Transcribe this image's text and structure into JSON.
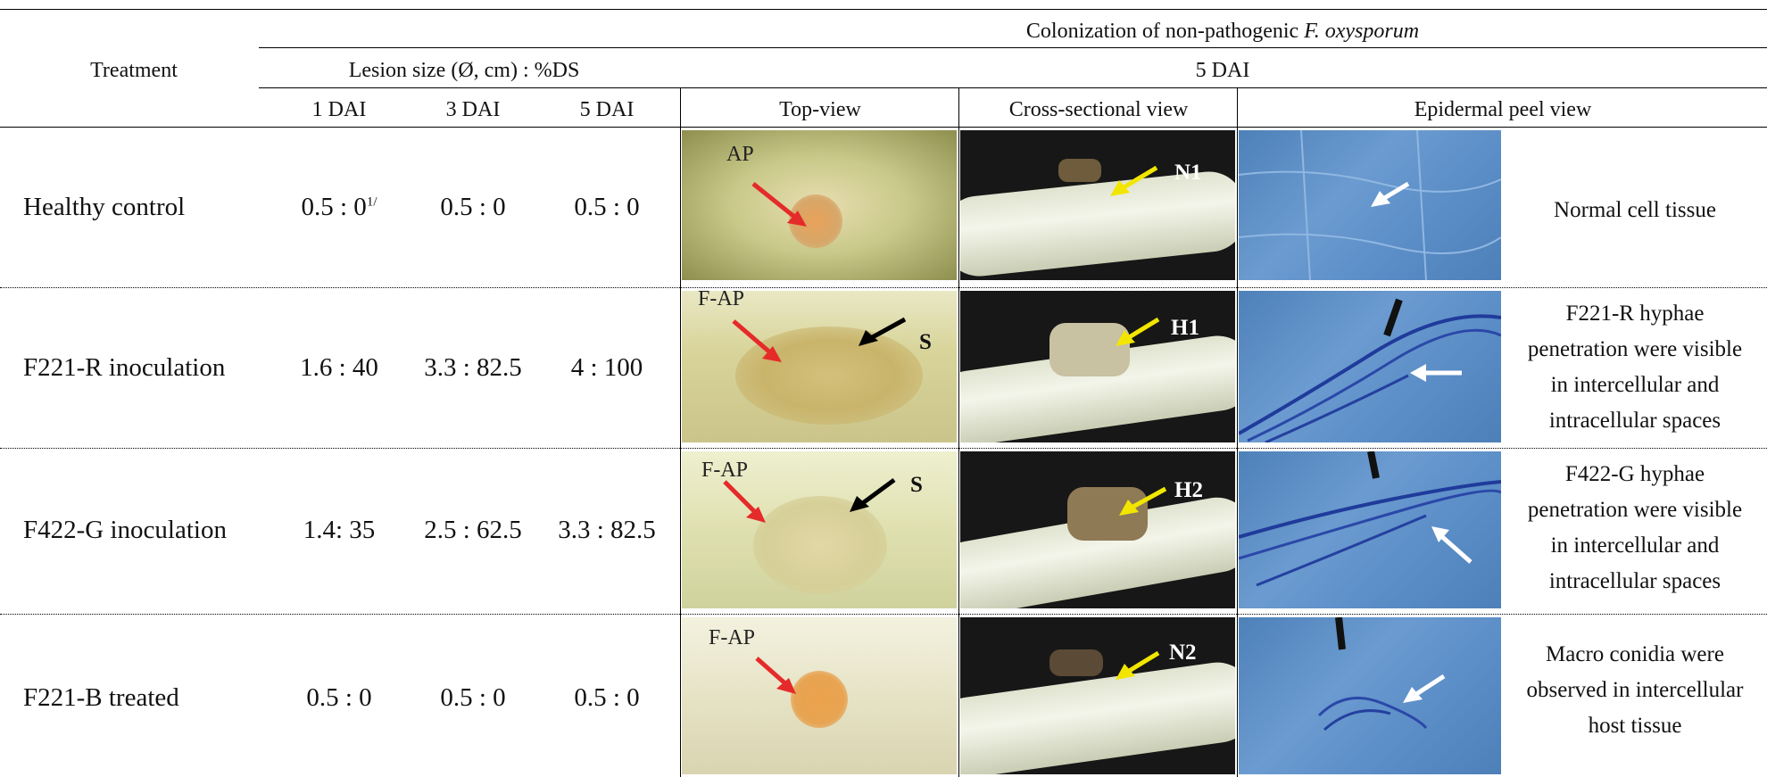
{
  "header": {
    "group_title_prefix": "Colonization of non-pathogenic ",
    "group_title_species": "F. oxysporum",
    "treatment": "Treatment",
    "lesion_group": "Lesion size (Ø, cm) : %DS",
    "dai5_group": "5 DAI",
    "dai1": "1 DAI",
    "dai3": "3 DAI",
    "dai5": "5 DAI",
    "top_view": "Top-view",
    "cross_view": "Cross-sectional view",
    "peel_view": "Epidermal peel view"
  },
  "rows": [
    {
      "treatment": "Healthy control",
      "dai1": "0.5 : 0",
      "dai1_sup": "1/",
      "dai3": "0.5 : 0",
      "dai5": "0.5 : 0",
      "top_labels": [
        "AP"
      ],
      "cross_label": "N1",
      "note": [
        "Normal cell tissue"
      ]
    },
    {
      "treatment": "F221-R inoculation",
      "dai1": "1.6 : 40",
      "dai1_sup": "",
      "dai3": "3.3 : 82.5",
      "dai5": "4 : 100",
      "top_labels": [
        "F-AP",
        "S"
      ],
      "cross_label": "H1",
      "note": [
        "F221-R hyphae",
        "penetration were visible",
        "in intercellular  and",
        "intracellular spaces"
      ]
    },
    {
      "treatment": "F422-G inoculation",
      "dai1": "1.4: 35",
      "dai1_sup": "",
      "dai3": "2.5 : 62.5",
      "dai5": "3.3 : 82.5",
      "top_labels": [
        "F-AP",
        "S"
      ],
      "cross_label": "H2",
      "note": [
        "F422-G hyphae",
        "penetration were visible",
        "in intercellular  and",
        "intracellular spaces"
      ]
    },
    {
      "treatment": "F221-B treated",
      "dai1": "0.5 : 0",
      "dai1_sup": "",
      "dai3": "0.5 : 0",
      "dai5": "0.5 : 0",
      "top_labels": [
        "F-AP"
      ],
      "cross_label": "N2",
      "note": [
        "Macro conidia were",
        "observed in intercellular",
        "host tissue"
      ]
    }
  ],
  "colors": {
    "arrow_red": "#e52a2a",
    "arrow_yellow": "#f2e600",
    "arrow_white": "#ffffff",
    "arrow_black": "#000000"
  }
}
